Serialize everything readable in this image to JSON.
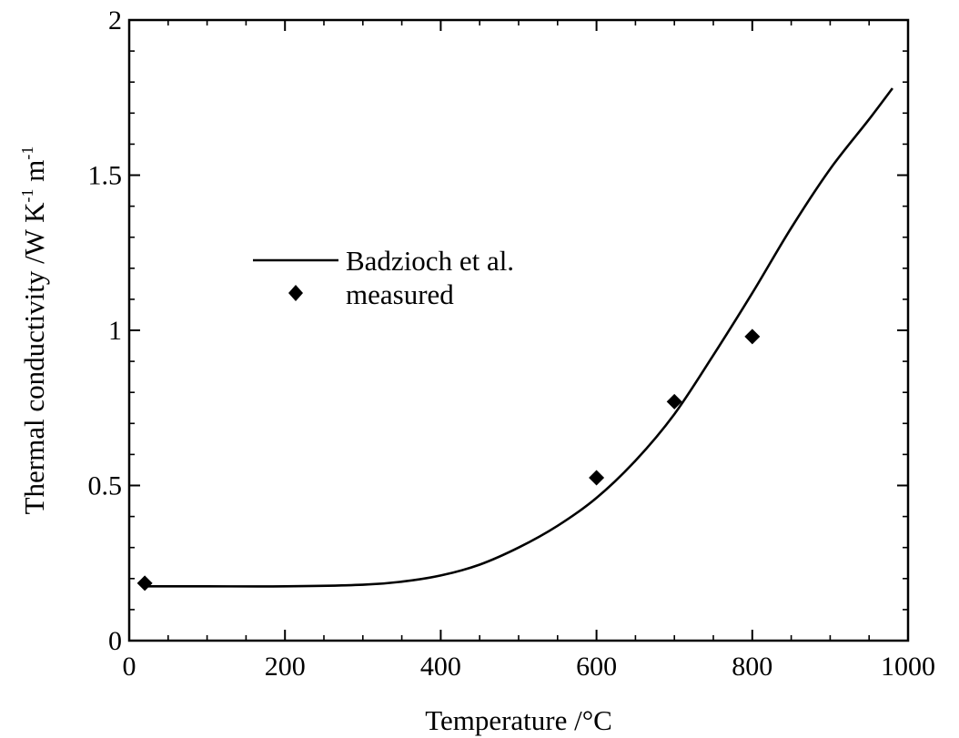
{
  "chart_data": {
    "type": "line",
    "title": "",
    "xlabel": "Temperature /°C",
    "ylabel": "Thermal conductivity /W K",
    "ylabel_sup1": "-1",
    "ylabel_mid": " m",
    "ylabel_sup2": "-1",
    "xlim": [
      0,
      1000
    ],
    "ylim": [
      0,
      2
    ],
    "x_ticks": [
      0,
      200,
      400,
      600,
      800,
      1000
    ],
    "y_ticks": [
      0,
      0.5,
      1,
      1.5,
      2
    ],
    "x_tick_labels": [
      "0",
      "200",
      "400",
      "600",
      "800",
      "1000"
    ],
    "y_tick_labels": [
      "0",
      "0.5",
      "1",
      "1.5",
      "2"
    ],
    "grid": false,
    "legend_position": "center-left",
    "series": [
      {
        "name": "Badzioch et al.",
        "type": "line",
        "color": "#000000",
        "x": [
          20,
          100,
          200,
          300,
          350,
          400,
          450,
          500,
          550,
          600,
          650,
          700,
          750,
          800,
          850,
          900,
          950,
          980
        ],
        "y": [
          0.175,
          0.175,
          0.175,
          0.18,
          0.19,
          0.21,
          0.245,
          0.3,
          0.37,
          0.46,
          0.58,
          0.73,
          0.92,
          1.12,
          1.33,
          1.52,
          1.68,
          1.78
        ]
      },
      {
        "name": "measured",
        "type": "scatter",
        "marker": "diamond",
        "color": "#000000",
        "x": [
          20,
          600,
          700,
          800
        ],
        "y": [
          0.185,
          0.525,
          0.77,
          0.98
        ]
      }
    ]
  }
}
